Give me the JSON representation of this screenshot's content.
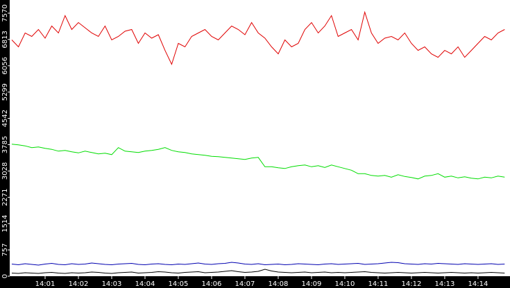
{
  "chart_data": {
    "type": "line",
    "x": [
      0,
      0.2,
      0.4,
      0.6,
      0.8,
      1,
      1.2,
      1.4,
      1.6,
      1.8,
      2,
      2.2,
      2.4,
      2.6,
      2.8,
      3,
      3.2,
      3.4,
      3.6,
      3.8,
      4,
      4.2,
      4.4,
      4.6,
      4.8,
      5,
      5.2,
      5.4,
      5.6,
      5.8,
      6,
      6.2,
      6.4,
      6.6,
      6.8,
      7,
      7.2,
      7.4,
      7.6,
      7.8,
      8,
      8.2,
      8.4,
      8.6,
      8.8,
      9,
      9.2,
      9.4,
      9.6,
      9.8,
      10,
      10.2,
      10.4,
      10.6,
      10.8,
      11,
      11.2,
      11.4,
      11.6,
      11.8,
      12,
      12.2,
      12.4,
      12.6,
      12.8,
      13,
      13.2,
      13.4,
      13.6,
      13.8,
      14,
      14.2,
      14.4,
      14.6,
      14.8
    ],
    "series": [
      {
        "color": "#e00000",
        "values": [
          6800,
          6600,
          7000,
          6900,
          7100,
          6850,
          7200,
          7000,
          7500,
          7100,
          7300,
          7150,
          7000,
          6900,
          7200,
          6800,
          6900,
          7050,
          7100,
          6700,
          7000,
          6850,
          6950,
          6500,
          6100,
          6700,
          6600,
          6900,
          7000,
          7100,
          6900,
          6800,
          7000,
          7200,
          7100,
          6950,
          7300,
          7000,
          6850,
          6600,
          6400,
          6800,
          6600,
          6700,
          7100,
          7300,
          7000,
          7200,
          7500,
          6900,
          7000,
          7100,
          6800,
          7600,
          7000,
          6700,
          6850,
          6900,
          6800,
          7000,
          6700,
          6500,
          6600,
          6400,
          6300,
          6500,
          6400,
          6600,
          6300,
          6500,
          6700,
          6900,
          6800,
          7000,
          7100
        ]
      },
      {
        "color": "#00dd00",
        "values": [
          3800,
          3780,
          3750,
          3700,
          3720,
          3680,
          3650,
          3600,
          3620,
          3580,
          3550,
          3600,
          3560,
          3520,
          3540,
          3500,
          3700,
          3600,
          3580,
          3560,
          3600,
          3620,
          3650,
          3700,
          3620,
          3580,
          3560,
          3520,
          3500,
          3480,
          3450,
          3440,
          3420,
          3400,
          3380,
          3360,
          3400,
          3420,
          3150,
          3150,
          3120,
          3100,
          3150,
          3180,
          3200,
          3150,
          3180,
          3130,
          3200,
          3150,
          3100,
          3050,
          2950,
          2950,
          2900,
          2880,
          2900,
          2850,
          2920,
          2870,
          2840,
          2800,
          2880,
          2900,
          2950,
          2850,
          2880,
          2830,
          2860,
          2820,
          2800,
          2850,
          2830,
          2880,
          2850
        ]
      },
      {
        "color": "#0000b0",
        "values": [
          350,
          330,
          360,
          340,
          320,
          350,
          370,
          340,
          330,
          360,
          340,
          350,
          380,
          360,
          340,
          330,
          350,
          360,
          370,
          340,
          330,
          350,
          360,
          340,
          330,
          350,
          340,
          360,
          380,
          350,
          340,
          360,
          370,
          400,
          380,
          350,
          340,
          360,
          330,
          340,
          350,
          330,
          340,
          360,
          350,
          340,
          330,
          350,
          360,
          340,
          350,
          360,
          370,
          340,
          350,
          360,
          380,
          400,
          390,
          360,
          350,
          340,
          360,
          350,
          370,
          360,
          350,
          340,
          360,
          350,
          340,
          350,
          360,
          340,
          350
        ]
      },
      {
        "color": "#000000",
        "values": [
          90,
          80,
          100,
          90,
          80,
          100,
          110,
          90,
          80,
          100,
          90,
          100,
          120,
          110,
          90,
          80,
          100,
          110,
          120,
          90,
          100,
          110,
          130,
          120,
          100,
          90,
          110,
          120,
          130,
          100,
          110,
          120,
          140,
          160,
          130,
          110,
          120,
          140,
          200,
          150,
          120,
          110,
          100,
          110,
          120,
          100,
          110,
          120,
          100,
          110,
          100,
          110,
          120,
          130,
          110,
          100,
          90,
          100,
          110,
          100,
          90,
          100,
          110,
          100,
          90,
          100,
          110,
          100,
          90,
          100,
          90,
          100,
          110,
          100,
          90
        ]
      }
    ],
    "xlim": [
      0,
      14.96
    ],
    "xticks": [
      {
        "value": 1,
        "label": "14:01"
      },
      {
        "value": 2,
        "label": "14:02"
      },
      {
        "value": 3,
        "label": "14:03"
      },
      {
        "value": 4,
        "label": "14:04"
      },
      {
        "value": 5,
        "label": "14:05"
      },
      {
        "value": 6,
        "label": "14:06"
      },
      {
        "value": 7,
        "label": "14:07"
      },
      {
        "value": 8,
        "label": "14:08"
      },
      {
        "value": 9,
        "label": "14:09"
      },
      {
        "value": 10,
        "label": "14:10"
      },
      {
        "value": 11,
        "label": "14:11"
      },
      {
        "value": 12,
        "label": "14:12"
      },
      {
        "value": 13,
        "label": "14:13"
      },
      {
        "value": 14,
        "label": "14:14"
      }
    ],
    "ylim": [
      0,
      7949
    ],
    "yticks": [
      0,
      757,
      1514,
      2271,
      3028,
      3785,
      4542,
      5299,
      6056,
      6813,
      7570
    ]
  }
}
